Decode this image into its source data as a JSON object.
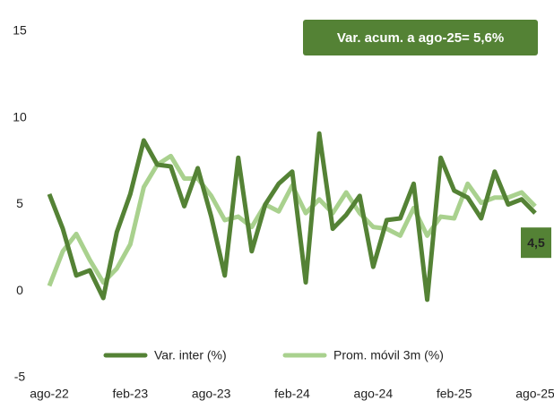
{
  "chart_data": {
    "type": "line",
    "annotation": "Var. acum. a ago-25= 5,6%",
    "categories": [
      "ago-22",
      null,
      null,
      null,
      null,
      null,
      "feb-23",
      null,
      null,
      null,
      null,
      null,
      "ago-23",
      null,
      null,
      null,
      null,
      null,
      "feb-24",
      null,
      null,
      null,
      null,
      null,
      "ago-24",
      null,
      null,
      null,
      null,
      null,
      "feb-25",
      null,
      null,
      null,
      null,
      null,
      "ago-25"
    ],
    "series": [
      {
        "name": "Var. inter (%)",
        "color": "#548235",
        "values": [
          5.6,
          3.6,
          0.9,
          1.2,
          -0.4,
          3.4,
          5.6,
          8.7,
          7.3,
          7.2,
          4.9,
          7.1,
          4.3,
          0.9,
          7.7,
          2.3,
          5.0,
          6.2,
          6.9,
          0.5,
          9.1,
          3.6,
          4.4,
          5.5,
          1.4,
          4.1,
          4.2,
          6.2,
          -0.5,
          7.7,
          5.8,
          5.4,
          4.2,
          6.9,
          5.0,
          5.3,
          4.5
        ],
        "value_labels": [
          null,
          null,
          null,
          null,
          null,
          null,
          null,
          null,
          null,
          null,
          null,
          null,
          null,
          null,
          null,
          null,
          null,
          null,
          null,
          null,
          null,
          null,
          null,
          null,
          null,
          null,
          null,
          null,
          null,
          null,
          null,
          null,
          null,
          null,
          null,
          null,
          "4,5"
        ]
      },
      {
        "name": "Prom. móvil 3m (%)",
        "color": "#a9d18e",
        "values": [
          0.3,
          2.3,
          3.3,
          1.8,
          0.5,
          1.3,
          2.7,
          6.0,
          7.3,
          7.8,
          6.5,
          6.5,
          5.5,
          4.1,
          4.3,
          3.7,
          5.0,
          4.6,
          6.1,
          4.5,
          5.3,
          4.5,
          5.7,
          4.5,
          3.7,
          3.6,
          3.2,
          4.8,
          3.2,
          4.3,
          4.2,
          6.2,
          5.1,
          5.4,
          5.4,
          5.7,
          4.9
        ]
      }
    ],
    "ylim": [
      -5,
      15
    ],
    "yticks": [
      -5,
      0,
      5,
      10,
      15
    ],
    "grid": false,
    "legend": "bottom"
  }
}
